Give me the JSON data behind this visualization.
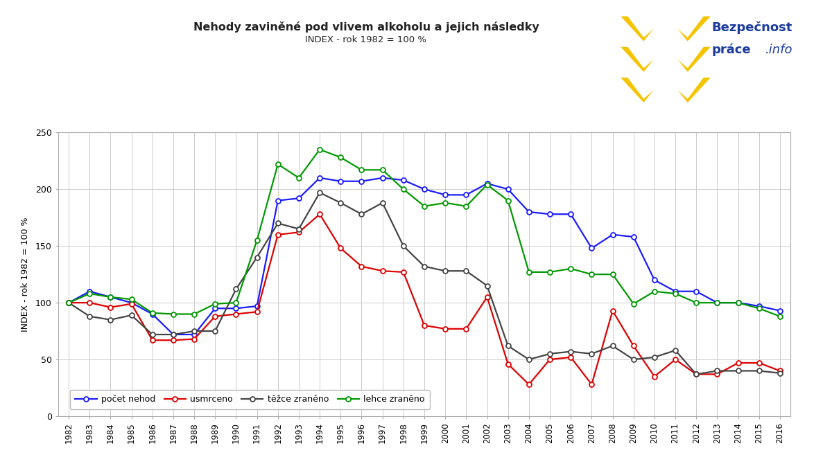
{
  "years": [
    1982,
    1983,
    1984,
    1985,
    1986,
    1987,
    1988,
    1989,
    1990,
    1991,
    1992,
    1993,
    1994,
    1995,
    1996,
    1997,
    1998,
    1999,
    2000,
    2001,
    2002,
    2003,
    2004,
    2005,
    2006,
    2007,
    2008,
    2009,
    2010,
    2011,
    2012,
    2013,
    2014,
    2015,
    2016
  ],
  "pocet_nehod": [
    100,
    110,
    105,
    100,
    90,
    72,
    72,
    95,
    95,
    97,
    190,
    192,
    210,
    207,
    207,
    210,
    208,
    200,
    195,
    195,
    205,
    200,
    180,
    178,
    178,
    148,
    160,
    158,
    120,
    110,
    110,
    100,
    100,
    97,
    93
  ],
  "usmrceno": [
    100,
    100,
    96,
    99,
    67,
    67,
    68,
    88,
    90,
    92,
    160,
    162,
    178,
    148,
    132,
    128,
    127,
    80,
    77,
    77,
    105,
    46,
    28,
    50,
    52,
    28,
    93,
    62,
    35,
    50,
    37,
    37,
    47,
    47,
    40
  ],
  "tezce_zraneno": [
    100,
    88,
    85,
    89,
    72,
    72,
    75,
    75,
    112,
    140,
    170,
    165,
    197,
    188,
    178,
    188,
    150,
    132,
    128,
    128,
    115,
    62,
    50,
    55,
    57,
    55,
    62,
    50,
    52,
    58,
    37,
    40,
    40,
    40,
    38
  ],
  "lehce_zraneno": [
    100,
    108,
    105,
    103,
    91,
    90,
    90,
    99,
    100,
    155,
    222,
    210,
    235,
    228,
    217,
    217,
    200,
    185,
    188,
    185,
    204,
    190,
    127,
    127,
    130,
    125,
    125,
    99,
    110,
    108,
    100,
    100,
    100,
    95,
    88
  ],
  "title_main": "Nehody zaviněné pod vlivem alkoholu a jejich následky",
  "title_sub": "INDEX - rok 1982 = 100 %",
  "ylabel": "INDEX - rok 1982 = 100 %",
  "ylim": [
    0,
    250
  ],
  "yticks": [
    0,
    50,
    100,
    150,
    200,
    250
  ],
  "color_pocet": "#1a1aff",
  "color_usmrceno": "#dd0000",
  "color_tezce": "#444444",
  "color_lehce": "#009900",
  "bg_color": "#ffffff",
  "legend_labels": [
    "počet nehod",
    "usmrceno",
    "těžce zraněno",
    "lehce zraněno"
  ],
  "logo_blue": "#1a3a9e",
  "logo_yellow": "#f5c400"
}
